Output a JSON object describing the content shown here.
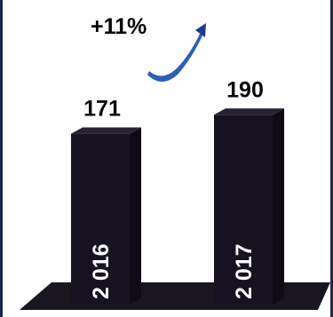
{
  "growth": {
    "label": "+11%",
    "arrow_icon": "growth-swoosh-arrow-icon"
  },
  "colors": {
    "bar": "#16121f",
    "bar_side": "#0e0b15",
    "bar_top": "#26222f",
    "floor": "#1a1620",
    "label_text": "#0a0a0a",
    "growth_text": "#1f2f6b",
    "arrow": "#2f5fb8",
    "arrow_dark": "#1d3a8a",
    "category_text": "#ffffff"
  },
  "chart_data": {
    "type": "bar",
    "categories": [
      "2016",
      "2017"
    ],
    "values": [
      171,
      190
    ],
    "category_labels": [
      "2 016",
      "2 017"
    ],
    "title": "",
    "xlabel": "",
    "ylabel": "",
    "ylim": [
      0,
      210
    ],
    "grid": false,
    "legend": "none"
  }
}
